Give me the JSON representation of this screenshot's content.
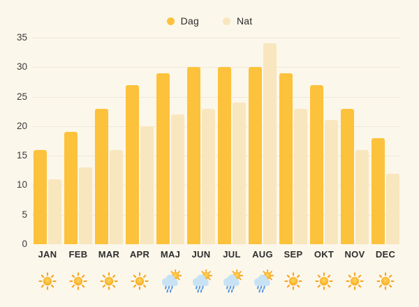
{
  "colors": {
    "background": "#FCF7EB",
    "gridline": "#EFE8D7",
    "text": "#2d2d2d",
    "dag_bar": "#FDC23B",
    "nat_bar": "#F8E6BE",
    "sun": "#F6A21B",
    "cloud": "#C8E2F5",
    "raindrop": "#4E94E4"
  },
  "legend": {
    "items": [
      {
        "label": "Dag",
        "color": "#FDC23B"
      },
      {
        "label": "Nat",
        "color": "#F8E6BE"
      }
    ]
  },
  "chart_data": {
    "type": "bar",
    "title": "",
    "xlabel": "",
    "ylabel": "",
    "categories": [
      "JAN",
      "FEB",
      "MAR",
      "APR",
      "MAJ",
      "JUN",
      "JUL",
      "AUG",
      "SEP",
      "OKT",
      "NOV",
      "DEC"
    ],
    "series": [
      {
        "name": "Dag",
        "color": "#FDC23B",
        "values": [
          16,
          19,
          23,
          27,
          29,
          30,
          30,
          30,
          29,
          27,
          23,
          18
        ]
      },
      {
        "name": "Nat",
        "color": "#F8E6BE",
        "values": [
          11,
          13,
          16,
          20,
          22,
          23,
          24,
          34,
          23,
          21,
          16,
          12
        ]
      }
    ],
    "ylim": [
      0,
      35
    ],
    "yticks": [
      0,
      5,
      10,
      15,
      20,
      25,
      30,
      35
    ],
    "grid": true,
    "legend_position": "top",
    "month_icons": [
      "sun",
      "sun",
      "sun",
      "sun",
      "sun-rain",
      "sun-rain",
      "sun-rain",
      "sun-rain",
      "sun",
      "sun",
      "sun",
      "sun"
    ]
  }
}
